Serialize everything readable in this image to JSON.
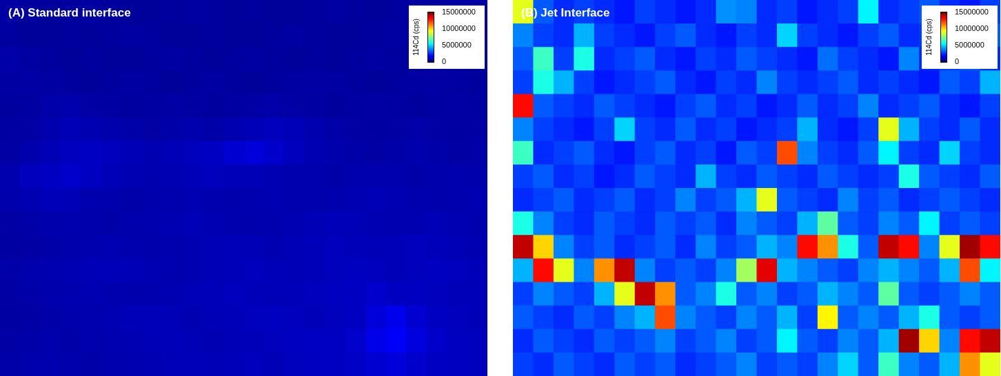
{
  "chart_data": [
    {
      "type": "heatmap",
      "title": "(A) Standard interface",
      "color": "jet",
      "tick_labels": false,
      "cells": [
        [
          500000,
          450000,
          400000,
          450000,
          500000,
          450000,
          400000,
          400000,
          450000,
          500000,
          450000,
          400000,
          450000,
          400000,
          400000,
          450000,
          500000,
          450000,
          400000,
          450000,
          500000,
          450000,
          500000,
          550000
        ],
        [
          450000,
          400000,
          400000,
          450000,
          400000,
          450000,
          500000,
          450000,
          400000,
          400000,
          450000,
          400000,
          400000,
          450000,
          500000,
          450000,
          400000,
          400000,
          450000,
          500000,
          450000,
          400000,
          450000,
          500000
        ],
        [
          600000,
          500000,
          450000,
          400000,
          450000,
          400000,
          400000,
          450000,
          500000,
          450000,
          400000,
          450000,
          500000,
          450000,
          400000,
          450000,
          400000,
          450000,
          500000,
          450000,
          400000,
          450000,
          500000,
          450000
        ],
        [
          500000,
          550000,
          500000,
          450000,
          400000,
          450000,
          500000,
          450000,
          400000,
          450000,
          500000,
          450000,
          400000,
          450000,
          500000,
          550000,
          500000,
          450000,
          400000,
          450000,
          500000,
          550000,
          500000,
          450000
        ],
        [
          450000,
          500000,
          600000,
          650000,
          550000,
          500000,
          450000,
          500000,
          550000,
          500000,
          450000,
          500000,
          550000,
          600000,
          550000,
          500000,
          450000,
          500000,
          550000,
          500000,
          450000,
          500000,
          550000,
          500000
        ],
        [
          500000,
          550000,
          700000,
          800000,
          750000,
          650000,
          600000,
          550000,
          600000,
          650000,
          600000,
          700000,
          800000,
          900000,
          850000,
          700000,
          600000,
          550000,
          500000,
          550000,
          600000,
          550000,
          500000,
          550000
        ],
        [
          550000,
          650000,
          800000,
          900000,
          1000000,
          900000,
          800000,
          750000,
          800000,
          900000,
          1000000,
          1200000,
          1300000,
          1100000,
          900000,
          750000,
          650000,
          600000,
          550000,
          600000,
          650000,
          600000,
          550000,
          600000
        ],
        [
          700000,
          900000,
          1000000,
          1100000,
          950000,
          850000,
          750000,
          700000,
          750000,
          850000,
          900000,
          850000,
          800000,
          750000,
          700000,
          650000,
          600000,
          650000,
          700000,
          650000,
          600000,
          650000,
          700000,
          650000
        ],
        [
          650000,
          750000,
          850000,
          800000,
          700000,
          650000,
          600000,
          650000,
          700000,
          750000,
          700000,
          650000,
          700000,
          750000,
          700000,
          650000,
          700000,
          750000,
          800000,
          750000,
          700000,
          650000,
          700000,
          750000
        ],
        [
          550000,
          600000,
          650000,
          700000,
          650000,
          600000,
          650000,
          700000,
          750000,
          800000,
          750000,
          700000,
          650000,
          700000,
          750000,
          800000,
          850000,
          800000,
          750000,
          700000,
          750000,
          800000,
          750000,
          700000
        ],
        [
          500000,
          550000,
          600000,
          650000,
          700000,
          750000,
          700000,
          650000,
          700000,
          750000,
          800000,
          850000,
          800000,
          750000,
          800000,
          850000,
          900000,
          850000,
          800000,
          850000,
          900000,
          850000,
          800000,
          750000
        ],
        [
          600000,
          650000,
          700000,
          750000,
          800000,
          850000,
          800000,
          750000,
          700000,
          750000,
          800000,
          850000,
          900000,
          850000,
          800000,
          850000,
          900000,
          950000,
          900000,
          850000,
          900000,
          950000,
          900000,
          850000
        ],
        [
          550000,
          600000,
          650000,
          700000,
          750000,
          700000,
          650000,
          700000,
          750000,
          800000,
          850000,
          900000,
          850000,
          800000,
          850000,
          900000,
          950000,
          1000000,
          1100000,
          1000000,
          950000,
          900000,
          850000,
          800000
        ],
        [
          500000,
          550000,
          600000,
          650000,
          700000,
          750000,
          800000,
          850000,
          800000,
          750000,
          800000,
          850000,
          900000,
          950000,
          900000,
          850000,
          900000,
          1000000,
          1300000,
          1600000,
          1200000,
          1000000,
          900000,
          850000
        ],
        [
          550000,
          600000,
          650000,
          600000,
          650000,
          700000,
          750000,
          800000,
          850000,
          800000,
          750000,
          800000,
          850000,
          900000,
          950000,
          1000000,
          950000,
          1100000,
          1500000,
          1800000,
          1400000,
          1100000,
          950000,
          900000
        ],
        [
          600000,
          650000,
          700000,
          650000,
          600000,
          650000,
          700000,
          750000,
          800000,
          850000,
          800000,
          850000,
          900000,
          850000,
          900000,
          950000,
          1000000,
          1050000,
          1200000,
          1300000,
          1100000,
          1000000,
          950000,
          900000
        ]
      ],
      "colorbar": {
        "label": "114Cd (cps)",
        "range": [
          0,
          15000000
        ],
        "ticks": [
          0,
          5000000,
          10000000,
          15000000
        ]
      }
    },
    {
      "type": "heatmap",
      "title": "(B) Jet Interface",
      "color": "jet",
      "tick_labels": false,
      "cells": [
        [
          9000000,
          3200000,
          2500000,
          2800000,
          2500000,
          2200000,
          2800000,
          2500000,
          2200000,
          2500000,
          4000000,
          3800000,
          2500000,
          2800000,
          2200000,
          2500000,
          2800000,
          5500000,
          2500000,
          2800000,
          3200000,
          2500000,
          2200000,
          2800000
        ],
        [
          3800000,
          2800000,
          2500000,
          4500000,
          2800000,
          2500000,
          2200000,
          2800000,
          3200000,
          2500000,
          2200000,
          2800000,
          2500000,
          5000000,
          2800000,
          2500000,
          2200000,
          2800000,
          3200000,
          2500000,
          2800000,
          2200000,
          2500000,
          3200000
        ],
        [
          3200000,
          6500000,
          2800000,
          6000000,
          2500000,
          2800000,
          3200000,
          2500000,
          2200000,
          2800000,
          2500000,
          3200000,
          2800000,
          2500000,
          2200000,
          3500000,
          2800000,
          2500000,
          2200000,
          3800000,
          2500000,
          2800000,
          3200000,
          2500000
        ],
        [
          2800000,
          6000000,
          4500000,
          2800000,
          2200000,
          2500000,
          2800000,
          3200000,
          2500000,
          2200000,
          2800000,
          2500000,
          3800000,
          2800000,
          2500000,
          2800000,
          3200000,
          2500000,
          2800000,
          2500000,
          2200000,
          3200000,
          2800000,
          4500000
        ],
        [
          13000000,
          3200000,
          2800000,
          2500000,
          3200000,
          2800000,
          2500000,
          2200000,
          2800000,
          3200000,
          2500000,
          2800000,
          2200000,
          2500000,
          3200000,
          2500000,
          2800000,
          3800000,
          2500000,
          2800000,
          3200000,
          2500000,
          2200000,
          2800000
        ],
        [
          3800000,
          2800000,
          2500000,
          2200000,
          2800000,
          5000000,
          2800000,
          2500000,
          3200000,
          2500000,
          2800000,
          2200000,
          2500000,
          2800000,
          4500000,
          2500000,
          2200000,
          2800000,
          9000000,
          4500000,
          2800000,
          2500000,
          3200000,
          2500000
        ],
        [
          6500000,
          2500000,
          2800000,
          3200000,
          2500000,
          2200000,
          2800000,
          3200000,
          2500000,
          2800000,
          2200000,
          3200000,
          2800000,
          12000000,
          3800000,
          2800000,
          2500000,
          3200000,
          5500000,
          2800000,
          2500000,
          5000000,
          2800000,
          2500000
        ],
        [
          2800000,
          3200000,
          2500000,
          2800000,
          2200000,
          2500000,
          3200000,
          2800000,
          2500000,
          4500000,
          2800000,
          2500000,
          3200000,
          2800000,
          2500000,
          3200000,
          2800000,
          2500000,
          2800000,
          6000000,
          3200000,
          2800000,
          2500000,
          3200000
        ],
        [
          2500000,
          2800000,
          3200000,
          2500000,
          2800000,
          3200000,
          2500000,
          2800000,
          3800000,
          2800000,
          3200000,
          4500000,
          9000000,
          3200000,
          2800000,
          2500000,
          3800000,
          2800000,
          3200000,
          2500000,
          2800000,
          3200000,
          2800000,
          2500000
        ],
        [
          6000000,
          3800000,
          2800000,
          2500000,
          3200000,
          2800000,
          2500000,
          3200000,
          2800000,
          3200000,
          2500000,
          3800000,
          3200000,
          2800000,
          4500000,
          7000000,
          3200000,
          2800000,
          3800000,
          3200000,
          5500000,
          2800000,
          3200000,
          2800000
        ],
        [
          14000000,
          10000000,
          3800000,
          2800000,
          3200000,
          2500000,
          2800000,
          3200000,
          2500000,
          3800000,
          2800000,
          3200000,
          4500000,
          3800000,
          13000000,
          11000000,
          6000000,
          3200000,
          14000000,
          13000000,
          3800000,
          9000000,
          14500000,
          13000000
        ],
        [
          4500000,
          13000000,
          9000000,
          3800000,
          11000000,
          14000000,
          3800000,
          2800000,
          3200000,
          2800000,
          3800000,
          8000000,
          13500000,
          4500000,
          3800000,
          3200000,
          2800000,
          3800000,
          4500000,
          3800000,
          3200000,
          4500000,
          12000000,
          5500000
        ],
        [
          2800000,
          3800000,
          3200000,
          2800000,
          4500000,
          9000000,
          14000000,
          11000000,
          3200000,
          3800000,
          6000000,
          3200000,
          3800000,
          2800000,
          3200000,
          4500000,
          3800000,
          3200000,
          7000000,
          3200000,
          2800000,
          3200000,
          3800000,
          3200000
        ],
        [
          3200000,
          2800000,
          2500000,
          3200000,
          2800000,
          3800000,
          4500000,
          12000000,
          3800000,
          3200000,
          2800000,
          3800000,
          3200000,
          4500000,
          2800000,
          9500000,
          3200000,
          3800000,
          3200000,
          4500000,
          6000000,
          3200000,
          2800000,
          3200000
        ],
        [
          2500000,
          3200000,
          2800000,
          2500000,
          3200000,
          2800000,
          3200000,
          3800000,
          2800000,
          3200000,
          3800000,
          2800000,
          3200000,
          5500000,
          3200000,
          2800000,
          3800000,
          3200000,
          4500000,
          14500000,
          10000000,
          3800000,
          13000000,
          14000000
        ],
        [
          2800000,
          2500000,
          3200000,
          2800000,
          2500000,
          3200000,
          2800000,
          3200000,
          2500000,
          2800000,
          3200000,
          3800000,
          2800000,
          3200000,
          2800000,
          3800000,
          5000000,
          3200000,
          6500000,
          3800000,
          3200000,
          4500000,
          11000000,
          9000000
        ]
      ],
      "colorbar": {
        "label": "114Cd (cps)",
        "range": [
          0,
          15000000
        ],
        "ticks": [
          0,
          5000000,
          10000000,
          15000000
        ]
      }
    }
  ]
}
